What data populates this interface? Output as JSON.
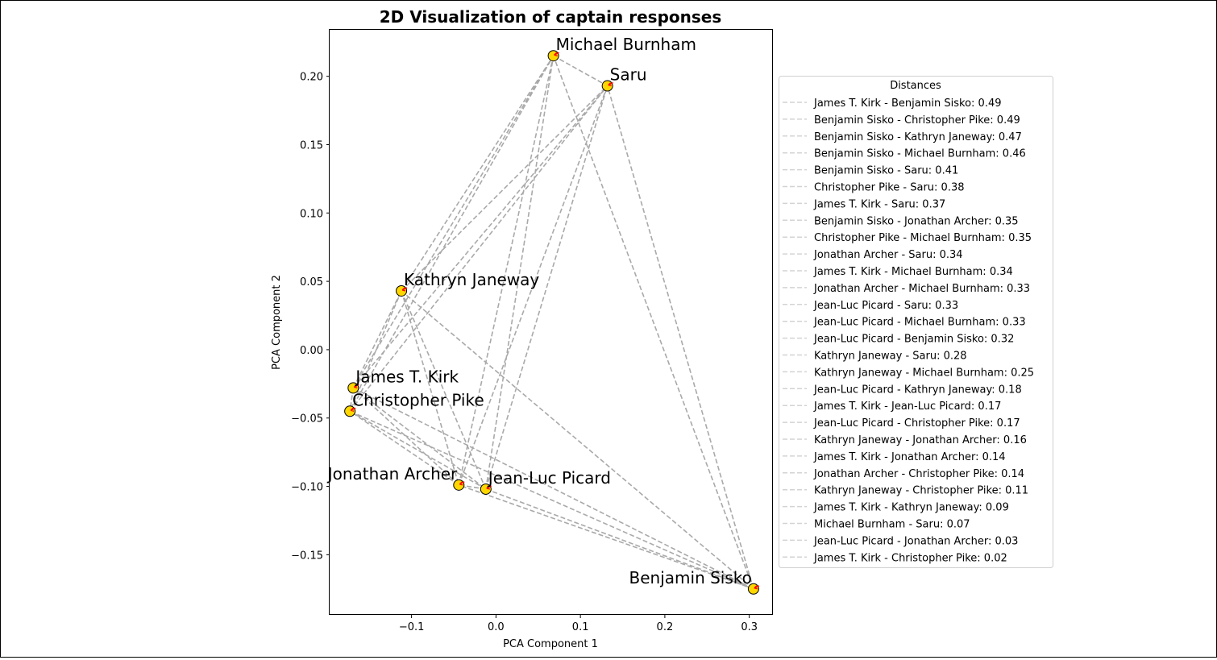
{
  "chart_data": {
    "type": "scatter",
    "title": "2D Visualization of captain responses",
    "xlabel": "PCA Component 1",
    "ylabel": "PCA Component 2",
    "xlim": [
      -0.197,
      0.328
    ],
    "ylim": [
      -0.194,
      0.234
    ],
    "xticks": [
      -0.1,
      0.0,
      0.1,
      0.2,
      0.3
    ],
    "xtick_labels": [
      "−0.1",
      "0.0",
      "0.1",
      "0.2",
      "0.3"
    ],
    "yticks": [
      -0.15,
      -0.1,
      -0.05,
      0.0,
      0.05,
      0.1,
      0.15,
      0.2
    ],
    "ytick_labels": [
      "−0.15",
      "−0.10",
      "−0.05",
      "0.00",
      "0.05",
      "0.10",
      "0.15",
      "0.20"
    ],
    "grid": false,
    "marker_color": "#ffd700",
    "arrow_color": "#ff0000",
    "line_color": "#a9a9a9",
    "points": [
      {
        "name": "Michael Burnham",
        "x": 0.068,
        "y": 0.215
      },
      {
        "name": "Saru",
        "x": 0.132,
        "y": 0.193
      },
      {
        "name": "Kathryn Janeway",
        "x": -0.112,
        "y": 0.043
      },
      {
        "name": "James T. Kirk",
        "x": -0.169,
        "y": -0.028
      },
      {
        "name": "Christopher Pike",
        "x": -0.173,
        "y": -0.045
      },
      {
        "name": "Jonathan Archer",
        "x": -0.044,
        "y": -0.099
      },
      {
        "name": "Jean-Luc Picard",
        "x": -0.012,
        "y": -0.102
      },
      {
        "name": "Benjamin Sisko",
        "x": 0.305,
        "y": -0.175
      }
    ],
    "legend": {
      "title": "Distances",
      "placement": "right outside",
      "entries": [
        {
          "a": "James T. Kirk",
          "b": "Benjamin Sisko",
          "d": 0.49
        },
        {
          "a": "Benjamin Sisko",
          "b": "Christopher Pike",
          "d": 0.49
        },
        {
          "a": "Benjamin Sisko",
          "b": "Kathryn Janeway",
          "d": 0.47
        },
        {
          "a": "Benjamin Sisko",
          "b": "Michael Burnham",
          "d": 0.46
        },
        {
          "a": "Benjamin Sisko",
          "b": "Saru",
          "d": 0.41
        },
        {
          "a": "Christopher Pike",
          "b": "Saru",
          "d": 0.38
        },
        {
          "a": "James T. Kirk",
          "b": "Saru",
          "d": 0.37
        },
        {
          "a": "Benjamin Sisko",
          "b": "Jonathan Archer",
          "d": 0.35
        },
        {
          "a": "Christopher Pike",
          "b": "Michael Burnham",
          "d": 0.35
        },
        {
          "a": "Jonathan Archer",
          "b": "Saru",
          "d": 0.34
        },
        {
          "a": "James T. Kirk",
          "b": "Michael Burnham",
          "d": 0.34
        },
        {
          "a": "Jonathan Archer",
          "b": "Michael Burnham",
          "d": 0.33
        },
        {
          "a": "Jean-Luc Picard",
          "b": "Saru",
          "d": 0.33
        },
        {
          "a": "Jean-Luc Picard",
          "b": "Michael Burnham",
          "d": 0.33
        },
        {
          "a": "Jean-Luc Picard",
          "b": "Benjamin Sisko",
          "d": 0.32
        },
        {
          "a": "Kathryn Janeway",
          "b": "Saru",
          "d": 0.28
        },
        {
          "a": "Kathryn Janeway",
          "b": "Michael Burnham",
          "d": 0.25
        },
        {
          "a": "Jean-Luc Picard",
          "b": "Kathryn Janeway",
          "d": 0.18
        },
        {
          "a": "James T. Kirk",
          "b": "Jean-Luc Picard",
          "d": 0.17
        },
        {
          "a": "Jean-Luc Picard",
          "b": "Christopher Pike",
          "d": 0.17
        },
        {
          "a": "Kathryn Janeway",
          "b": "Jonathan Archer",
          "d": 0.16
        },
        {
          "a": "James T. Kirk",
          "b": "Jonathan Archer",
          "d": 0.14
        },
        {
          "a": "Jonathan Archer",
          "b": "Christopher Pike",
          "d": 0.14
        },
        {
          "a": "Kathryn Janeway",
          "b": "Christopher Pike",
          "d": 0.11
        },
        {
          "a": "James T. Kirk",
          "b": "Kathryn Janeway",
          "d": 0.09
        },
        {
          "a": "Michael Burnham",
          "b": "Saru",
          "d": 0.07
        },
        {
          "a": "Jean-Luc Picard",
          "b": "Jonathan Archer",
          "d": 0.03
        },
        {
          "a": "James T. Kirk",
          "b": "Christopher Pike",
          "d": 0.02
        }
      ]
    }
  }
}
